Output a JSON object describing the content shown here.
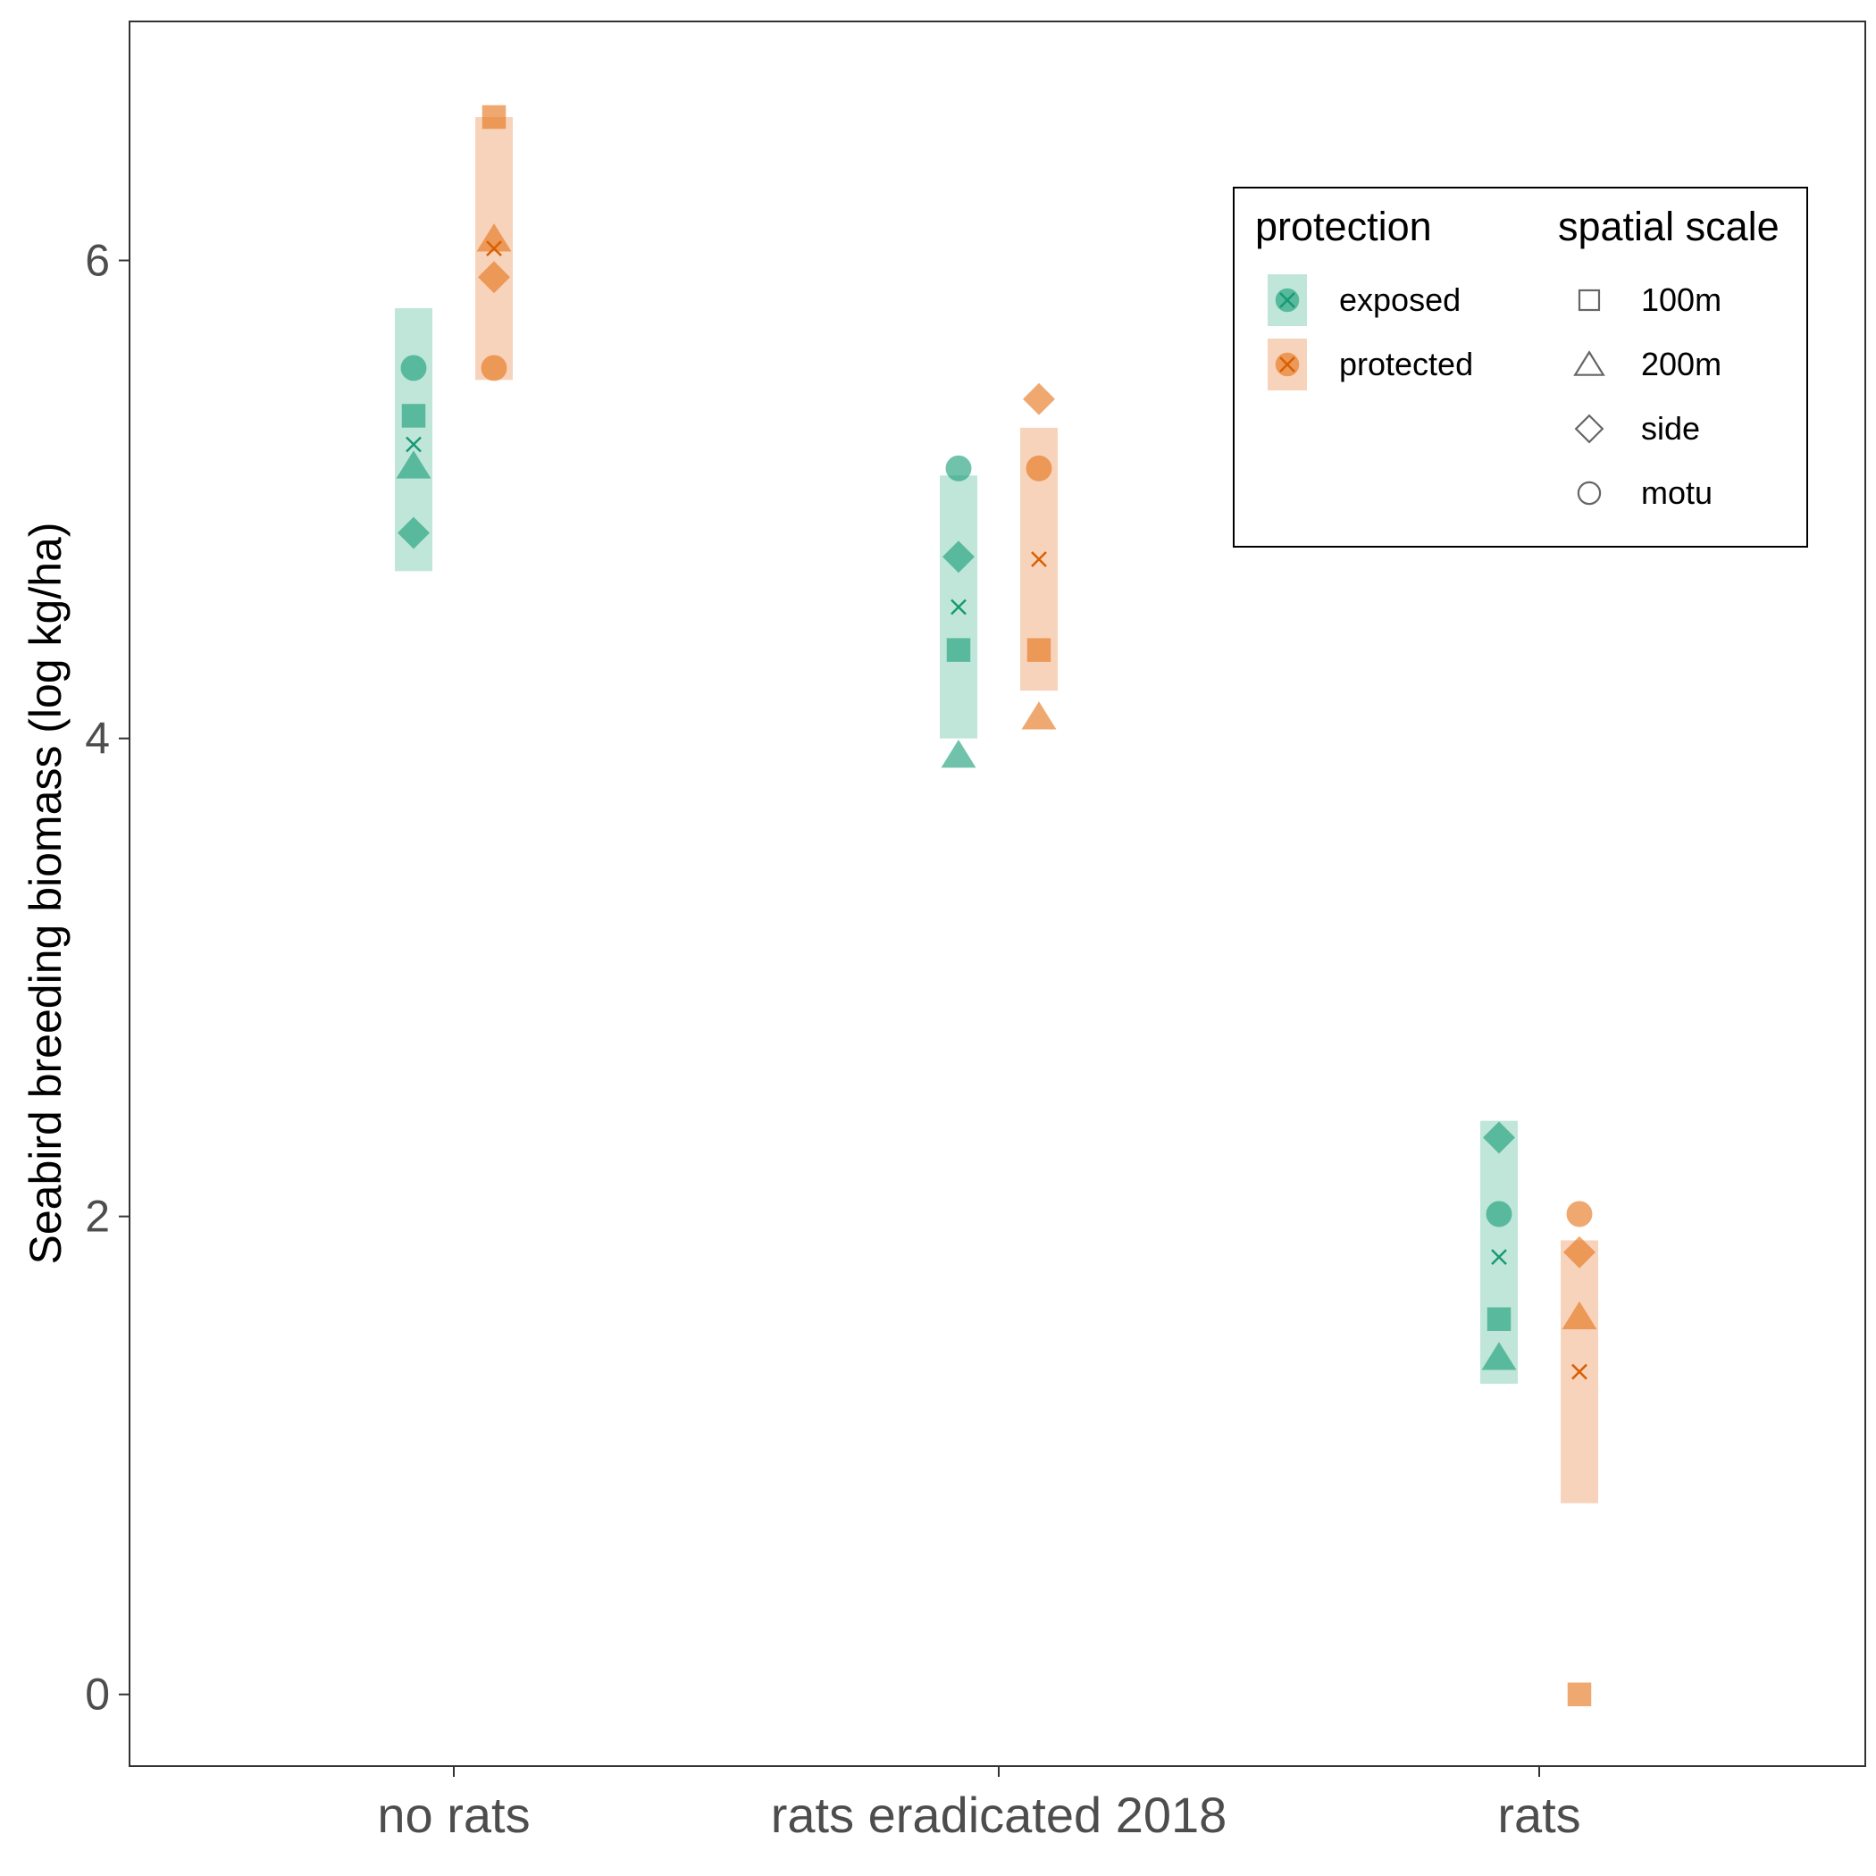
{
  "chart_data": {
    "type": "scatter",
    "ylabel": "Seabird breeding biomass (log kg/ha)",
    "xlabel": "",
    "categories": [
      "no rats",
      "rats eradicated 2018",
      "rats"
    ],
    "ylim": [
      -0.3,
      7.0
    ],
    "yticks": [
      0,
      2,
      4,
      6
    ],
    "grid": false,
    "legend_position": "top-right",
    "colors": {
      "exposed": "#1b9e77",
      "protected": "#e6751a",
      "exposed_range": "#bfe6d9",
      "protected_range": "#f8d3bb",
      "exposed_mean": "#169a74",
      "protected_mean": "#d95f02"
    },
    "groups": [
      {
        "category": "no rats",
        "protection": "exposed",
        "range": [
          4.7,
          5.8
        ],
        "mean": 5.23,
        "points": [
          {
            "scale": "100m",
            "y": 5.35
          },
          {
            "scale": "200m",
            "y": 5.14
          },
          {
            "scale": "side",
            "y": 4.86
          },
          {
            "scale": "motu",
            "y": 5.55
          }
        ]
      },
      {
        "category": "no rats",
        "protection": "protected",
        "range": [
          5.5,
          6.6
        ],
        "mean": 6.05,
        "points": [
          {
            "scale": "100m",
            "y": 6.6
          },
          {
            "scale": "200m",
            "y": 6.09
          },
          {
            "scale": "side",
            "y": 5.93
          },
          {
            "scale": "motu",
            "y": 5.55
          }
        ]
      },
      {
        "category": "rats eradicated 2018",
        "protection": "exposed",
        "range": [
          4.0,
          5.1
        ],
        "mean": 4.55,
        "points": [
          {
            "scale": "100m",
            "y": 4.37
          },
          {
            "scale": "200m",
            "y": 3.93
          },
          {
            "scale": "side",
            "y": 4.76
          },
          {
            "scale": "motu",
            "y": 5.13
          }
        ]
      },
      {
        "category": "rats eradicated 2018",
        "protection": "protected",
        "range": [
          4.2,
          5.3
        ],
        "mean": 4.75,
        "points": [
          {
            "scale": "100m",
            "y": 4.37
          },
          {
            "scale": "200m",
            "y": 4.09
          },
          {
            "scale": "side",
            "y": 5.42
          },
          {
            "scale": "motu",
            "y": 5.13
          }
        ]
      },
      {
        "category": "rats",
        "protection": "exposed",
        "range": [
          1.3,
          2.4
        ],
        "mean": 1.83,
        "points": [
          {
            "scale": "100m",
            "y": 1.57
          },
          {
            "scale": "200m",
            "y": 1.41
          },
          {
            "scale": "side",
            "y": 2.33
          },
          {
            "scale": "motu",
            "y": 2.01
          }
        ]
      },
      {
        "category": "rats",
        "protection": "protected",
        "range": [
          0.8,
          1.9
        ],
        "mean": 1.35,
        "points": [
          {
            "scale": "100m",
            "y": 0.0
          },
          {
            "scale": "200m",
            "y": 1.58
          },
          {
            "scale": "side",
            "y": 1.85
          },
          {
            "scale": "motu",
            "y": 2.01
          }
        ]
      }
    ],
    "legend": {
      "protection": {
        "title": "protection",
        "items": [
          "exposed",
          "protected"
        ]
      },
      "spatial_scale": {
        "title": "spatial scale",
        "items": [
          {
            "label": "100m",
            "shape": "square"
          },
          {
            "label": "200m",
            "shape": "triangle"
          },
          {
            "label": "side",
            "shape": "diamond"
          },
          {
            "label": "motu",
            "shape": "circle"
          }
        ]
      }
    }
  }
}
